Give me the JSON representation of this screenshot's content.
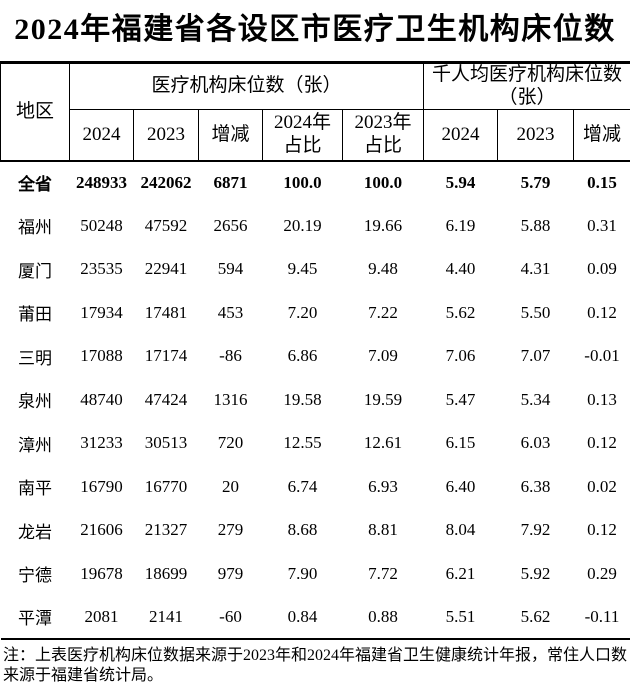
{
  "title": "2024年福建省各设区市医疗卫生机构床位数",
  "note": "注：上表医疗机构床位数据来源于2023年和2024年福建省卫生健康统计年报，常住人口数来源于福建省统计局。",
  "colors": {
    "text": "#000000",
    "background": "#ffffff",
    "border": "#000000"
  },
  "chart_data": {
    "type": "table",
    "title": "2024年福建省各设区市医疗卫生机构床位数",
    "corner_header": "地区",
    "group_headers": [
      "医疗机构床位数（张）",
      "千人均医疗机构床位数\n（张）"
    ],
    "columns": [
      "2024",
      "2023",
      "增减",
      "2024年\n占比",
      "2023年\n占比",
      "2024",
      "2023",
      "增减"
    ],
    "layout": {
      "grid": "header-only",
      "bold_first_row": true
    },
    "rows": [
      {
        "region": "全省",
        "bold": true,
        "values": [
          "248933",
          "242062",
          "6871",
          "100.0",
          "100.0",
          "5.94",
          "5.79",
          "0.15"
        ]
      },
      {
        "region": "福州",
        "bold": false,
        "values": [
          "50248",
          "47592",
          "2656",
          "20.19",
          "19.66",
          "6.19",
          "5.88",
          "0.31"
        ]
      },
      {
        "region": "厦门",
        "bold": false,
        "values": [
          "23535",
          "22941",
          "594",
          "9.45",
          "9.48",
          "4.40",
          "4.31",
          "0.09"
        ]
      },
      {
        "region": "莆田",
        "bold": false,
        "values": [
          "17934",
          "17481",
          "453",
          "7.20",
          "7.22",
          "5.62",
          "5.50",
          "0.12"
        ]
      },
      {
        "region": "三明",
        "bold": false,
        "values": [
          "17088",
          "17174",
          "-86",
          "6.86",
          "7.09",
          "7.06",
          "7.07",
          "-0.01"
        ]
      },
      {
        "region": "泉州",
        "bold": false,
        "values": [
          "48740",
          "47424",
          "1316",
          "19.58",
          "19.59",
          "5.47",
          "5.34",
          "0.13"
        ]
      },
      {
        "region": "漳州",
        "bold": false,
        "values": [
          "31233",
          "30513",
          "720",
          "12.55",
          "12.61",
          "6.15",
          "6.03",
          "0.12"
        ]
      },
      {
        "region": "南平",
        "bold": false,
        "values": [
          "16790",
          "16770",
          "20",
          "6.74",
          "6.93",
          "6.40",
          "6.38",
          "0.02"
        ]
      },
      {
        "region": "龙岩",
        "bold": false,
        "values": [
          "21606",
          "21327",
          "279",
          "8.68",
          "8.81",
          "8.04",
          "7.92",
          "0.12"
        ]
      },
      {
        "region": "宁德",
        "bold": false,
        "values": [
          "19678",
          "18699",
          "979",
          "7.90",
          "7.72",
          "6.21",
          "5.92",
          "0.29"
        ]
      },
      {
        "region": "平潭",
        "bold": false,
        "values": [
          "2081",
          "2141",
          "-60",
          "0.84",
          "0.88",
          "5.51",
          "5.62",
          "-0.11"
        ]
      }
    ]
  }
}
